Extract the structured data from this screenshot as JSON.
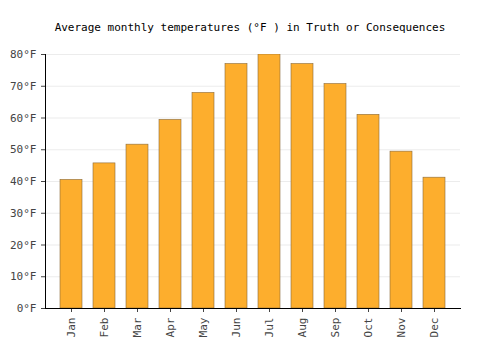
{
  "chart_data": {
    "type": "bar",
    "title": "Average monthly temperatures (°F ) in Truth or Consequences",
    "categories": [
      "Jan",
      "Feb",
      "Mar",
      "Apr",
      "May",
      "Jun",
      "Jul",
      "Aug",
      "Sep",
      "Oct",
      "Nov",
      "Dec"
    ],
    "values": [
      40.5,
      45.7,
      51.6,
      59.4,
      67.9,
      77,
      80,
      77,
      70.7,
      61,
      49.4,
      41.2
    ],
    "color": "#fdae2d",
    "ylim": [
      0,
      80
    ],
    "yticks": [
      {
        "value": 0,
        "label": "0°F"
      },
      {
        "value": 10,
        "label": "10°F"
      },
      {
        "value": 20,
        "label": "20°F"
      },
      {
        "value": 30,
        "label": "30°F"
      },
      {
        "value": 40,
        "label": "40°F"
      },
      {
        "value": 50,
        "label": "50°F"
      },
      {
        "value": 60,
        "label": "60°F"
      },
      {
        "value": 70,
        "label": "70°F"
      },
      {
        "value": 80,
        "label": "80°F"
      }
    ],
    "grid": true
  }
}
